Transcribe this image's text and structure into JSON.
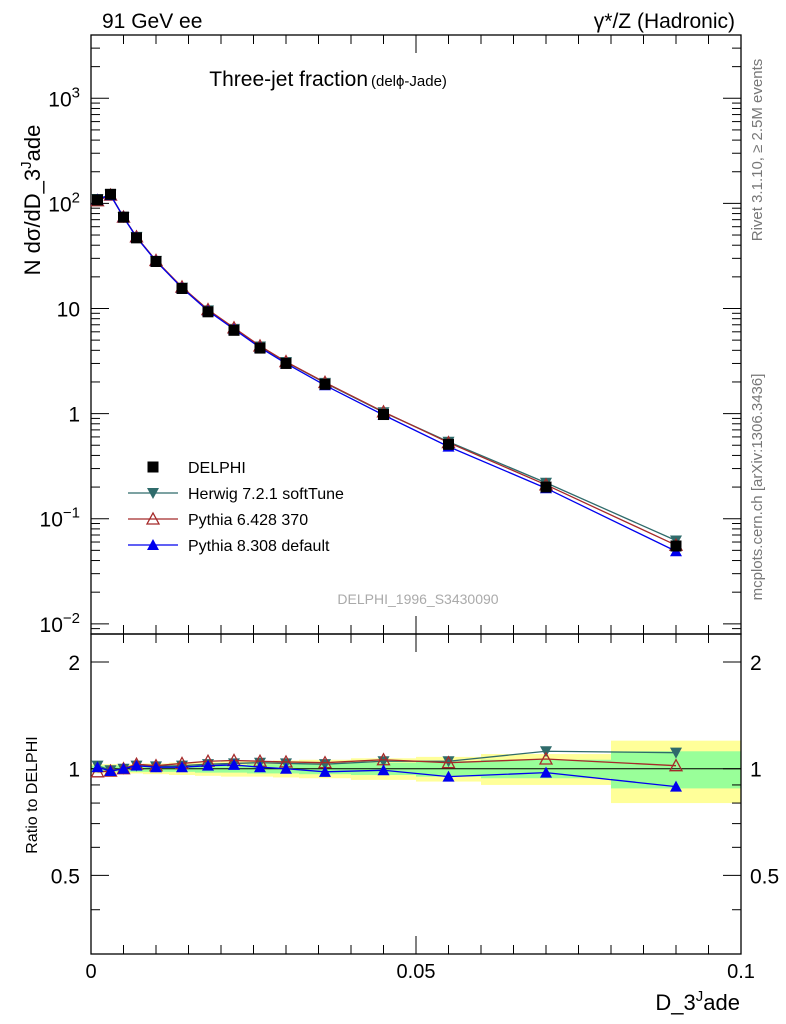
{
  "header": {
    "left": "91 GeV ee",
    "right": "γ*/Z (Hadronic)"
  },
  "plot": {
    "title_main": "Three-jet fraction",
    "title_sub": "(delϕ-Jade)",
    "watermark": "DELPHI_1996_S3430090",
    "side_rivet": "Rivet 3.1.10, ≥ 2.5M events",
    "side_mcplots": "mcplots.cern.ch [arXiv:1306.3436]",
    "ylabel_main": "N dσ/dD_3",
    "ylabel_main_sup": "J",
    "ylabel_main_end": "ade",
    "ylabel_ratio": "Ratio to DELPHI",
    "xlabel": "D_3",
    "xlabel_sup": "J",
    "xlabel_end": "ade",
    "xticks": [
      "0",
      "0.05",
      "0.1"
    ],
    "yticks_main": [
      {
        "base": "10",
        "exp": "−2"
      },
      {
        "base": "10",
        "exp": "−1"
      },
      {
        "base": "1",
        "exp": ""
      },
      {
        "base": "10",
        "exp": ""
      },
      {
        "base": "10",
        "exp": "2"
      },
      {
        "base": "10",
        "exp": "3"
      }
    ],
    "yticks_ratio": [
      "0.5",
      "1",
      "2"
    ],
    "yticks_ratio_right": [
      "0.5",
      "1",
      "2"
    ]
  },
  "chart_data": {
    "type": "line",
    "x": [
      0.001,
      0.003,
      0.005,
      0.007,
      0.01,
      0.014,
      0.018,
      0.022,
      0.026,
      0.03,
      0.036,
      0.045,
      0.055,
      0.07,
      0.09
    ],
    "xlim": [
      0,
      0.1
    ],
    "ylim_main": [
      0.008,
      4000
    ],
    "yscale_main": "log",
    "ylim_ratio": [
      0.3,
      2.4
    ],
    "yscale_ratio": "log",
    "bins": [
      0,
      0.002,
      0.004,
      0.006,
      0.008,
      0.012,
      0.016,
      0.02,
      0.024,
      0.028,
      0.032,
      0.04,
      0.05,
      0.06,
      0.08,
      0.1
    ],
    "series": [
      {
        "name": "DELPHI",
        "color": "#000000",
        "marker": "square",
        "values": [
          108,
          122,
          74,
          47,
          28,
          15.5,
          9.3,
          6.2,
          4.2,
          3.0,
          1.9,
          0.98,
          0.51,
          0.2,
          0.055
        ]
      },
      {
        "name": "Herwig 7.2.1 softTune",
        "color": "#2f6b6b",
        "marker": "triangle-down",
        "values": [
          110,
          121,
          74,
          48,
          28.4,
          15.8,
          9.6,
          6.4,
          4.35,
          3.1,
          1.96,
          1.03,
          0.54,
          0.22,
          0.062
        ]
      },
      {
        "name": "Pythia 6.428 370",
        "color": "#a52a2a",
        "marker": "triangle-up-open",
        "values": [
          106,
          120,
          74,
          48,
          28.6,
          16.0,
          9.75,
          6.55,
          4.4,
          3.12,
          1.98,
          1.04,
          0.53,
          0.21,
          0.056
        ]
      },
      {
        "name": "Pythia 8.308 default",
        "color": "#0000ee",
        "marker": "triangle-up",
        "values": [
          109,
          120,
          74,
          47.5,
          28.2,
          15.7,
          9.5,
          6.35,
          4.25,
          3.0,
          1.86,
          0.97,
          0.485,
          0.195,
          0.049
        ]
      }
    ],
    "ratios": [
      {
        "name": "Herwig 7.2.1 softTune",
        "values": [
          1.02,
          0.99,
          1.0,
          1.02,
          1.015,
          1.02,
          1.03,
          1.035,
          1.04,
          1.035,
          1.03,
          1.05,
          1.05,
          1.12,
          1.11
        ]
      },
      {
        "name": "Pythia 6.428 370",
        "values": [
          0.98,
          0.985,
          1.0,
          1.03,
          1.02,
          1.035,
          1.05,
          1.055,
          1.05,
          1.045,
          1.04,
          1.06,
          1.04,
          1.065,
          1.02
        ]
      },
      {
        "name": "Pythia 8.308 default",
        "values": [
          1.01,
          0.985,
          1.0,
          1.02,
          1.01,
          1.01,
          1.02,
          1.025,
          1.01,
          1.0,
          0.98,
          0.99,
          0.95,
          0.975,
          0.89
        ]
      }
    ],
    "band_inner": [
      0.02,
      0.02,
      0.02,
      0.02,
      0.02,
      0.02,
      0.025,
      0.025,
      0.03,
      0.03,
      0.035,
      0.04,
      0.05,
      0.06,
      0.12
    ],
    "band_outer": [
      0.03,
      0.03,
      0.03,
      0.03,
      0.035,
      0.04,
      0.045,
      0.05,
      0.05,
      0.055,
      0.06,
      0.07,
      0.08,
      0.1,
      0.2
    ],
    "band_inner_color": "#99ff99",
    "band_outer_color": "#ffff99",
    "legend_position": "bottom-left"
  }
}
